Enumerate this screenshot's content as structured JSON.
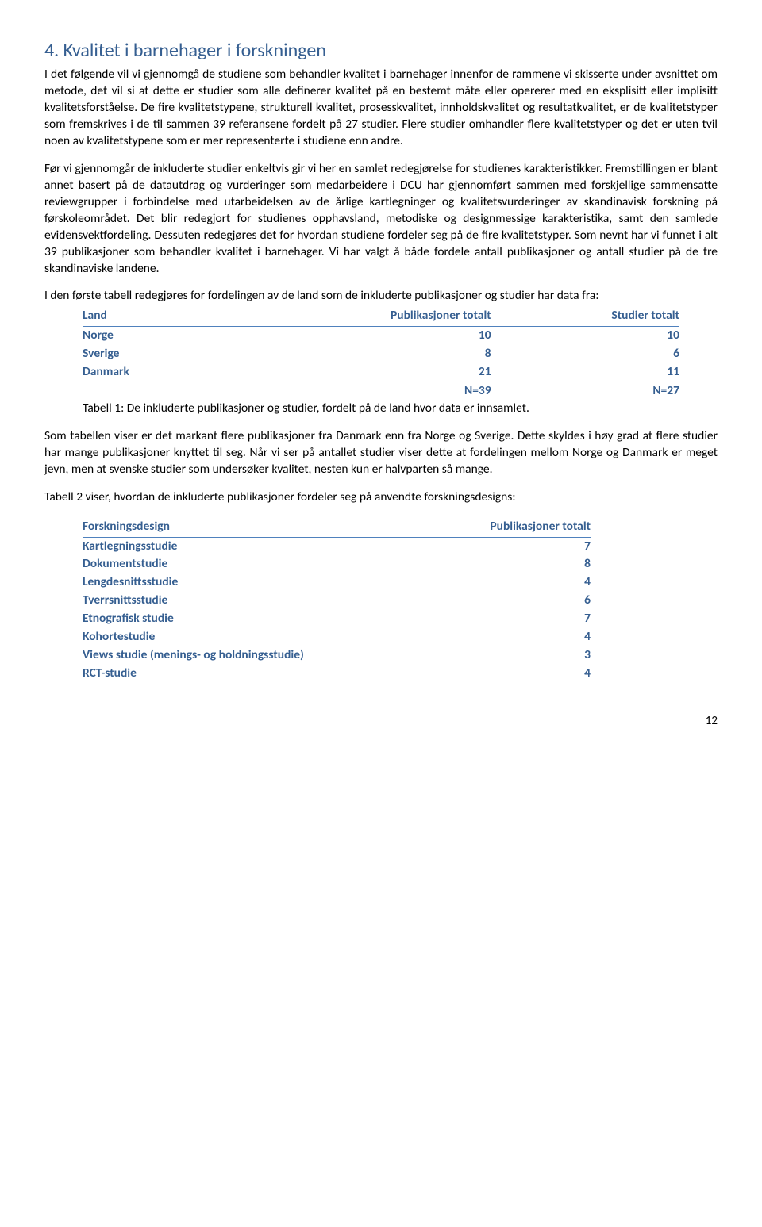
{
  "heading": "4. Kvalitet i barnehager i forskningen",
  "paragraphs": {
    "p1": "I det følgende vil vi gjennomgå de studiene som behandler kvalitet i barnehager innenfor de rammene vi skisserte under avsnittet om metode, det vil si at dette er studier som alle definerer kvalitet på en bestemt måte eller opererer med en eksplisitt eller implisitt kvalitetsforståelse. De fire kvalitetstypene, strukturell kvalitet, prosesskvalitet, innholdskvalitet og resultatkvalitet, er de kvalitetstyper som fremskrives i de til sammen 39 referansene fordelt på 27 studier. Flere studier omhandler flere kvalitetstyper og det er uten tvil noen av kvalitetstypene som er mer representerte i studiene enn andre.",
    "p2": "Før vi gjennomgår de inkluderte studier enkeltvis gir vi her en samlet redegjørelse for studienes karakteristikker. Fremstillingen er blant annet basert på de datautdrag og vurderinger som medarbeidere i DCU har gjennomført sammen med forskjellige sammensatte reviewgrupper i forbindelse med utarbeidelsen av de årlige kartlegninger og kvalitetsvurderinger av skandinavisk forskning på førskoleområdet. Det blir redegjort for studienes opphavsland, metodiske og designmessige karakteristika, samt den samlede evidensvektfordeling. Dessuten redegjøres det for hvordan studiene fordeler seg på de fire kvalitetstyper. Som nevnt har vi funnet i alt 39 publikasjoner som behandler kvalitet i barnehager. Vi har valgt å både fordele antall publikasjoner og antall studier på de tre skandinaviske landene.",
    "p3": "I den første tabell redegjøres for fordelingen av de land som de inkluderte publikasjoner og studier har data fra:",
    "p4": "Som tabellen viser er det markant flere publikasjoner fra Danmark enn fra Norge og Sverige. Dette skyldes i høy grad at flere studier har mange publikasjoner knyttet til seg. Når vi ser på antallet studier viser dette at fordelingen mellom Norge og Danmark er meget jevn, men at svenske studier som undersøker kvalitet, nesten kun er halvparten så mange.",
    "p5": "Tabell 2 viser, hvordan de inkluderte publikasjoner fordeler seg på anvendte forskningsdesigns:"
  },
  "table1": {
    "headers": [
      "Land",
      "Publikasjoner totalt",
      "Studier totalt"
    ],
    "rows": [
      {
        "c0": "Norge",
        "c1": "10",
        "c2": "10"
      },
      {
        "c0": "Sverige",
        "c1": "8",
        "c2": "6"
      },
      {
        "c0": "Danmark",
        "c1": "21",
        "c2": "11"
      }
    ],
    "totals": {
      "c1": "N=39",
      "c2": "N=27"
    },
    "caption": "Tabell 1: De inkluderte publikasjoner og studier, fordelt på de land hvor data er innsamlet."
  },
  "table2": {
    "headers": [
      "Forskningsdesign",
      "Publikasjoner totalt"
    ],
    "rows": [
      {
        "c0": "Kartlegningsstudie",
        "c1": "7"
      },
      {
        "c0": "Dokumentstudie",
        "c1": "8"
      },
      {
        "c0": "Lengdesnittsstudie",
        "c1": "4"
      },
      {
        "c0": "Tverrsnittsstudie",
        "c1": "6"
      },
      {
        "c0": "Etnografisk studie",
        "c1": "7"
      },
      {
        "c0": "Kohortestudie",
        "c1": "4"
      },
      {
        "c0": "Views studie (menings- og holdningsstudie)",
        "c1": "3"
      },
      {
        "c0": "RCT-studie",
        "c1": "4"
      }
    ]
  },
  "pagenum": "12",
  "colors": {
    "heading": "#365f91",
    "tableText": "#365f91",
    "tableBorder": "#4f81bd",
    "body": "#000000",
    "background": "#ffffff"
  }
}
